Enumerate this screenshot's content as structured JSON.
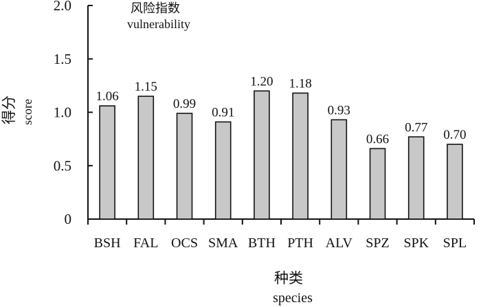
{
  "chart_data": {
    "type": "bar",
    "title_cn": "风险指数",
    "title_en": "vulnerability",
    "ylabel_cn": "得分",
    "ylabel_en": "score",
    "xlabel_cn": "种类",
    "xlabel_en": "species",
    "categories": [
      "BSH",
      "FAL",
      "OCS",
      "SMA",
      "BTH",
      "PTH",
      "ALV",
      "SPZ",
      "SPK",
      "SPL"
    ],
    "values": [
      1.06,
      1.15,
      0.99,
      0.91,
      1.2,
      1.18,
      0.93,
      0.66,
      0.77,
      0.7
    ],
    "data_labels": [
      "1.06",
      "1.15",
      "0.99",
      "0.91",
      "1.20",
      "1.18",
      "0.93",
      "0.66",
      "0.77",
      "0.70"
    ],
    "ylim": [
      0,
      2.0
    ],
    "yticks": [
      0,
      0.5,
      1.0,
      1.5,
      2.0
    ],
    "ytick_labels": [
      "0",
      "0.5",
      "1.0",
      "1.5",
      "2.0"
    ],
    "bar_color": "#c8c8c8",
    "grid": false
  }
}
